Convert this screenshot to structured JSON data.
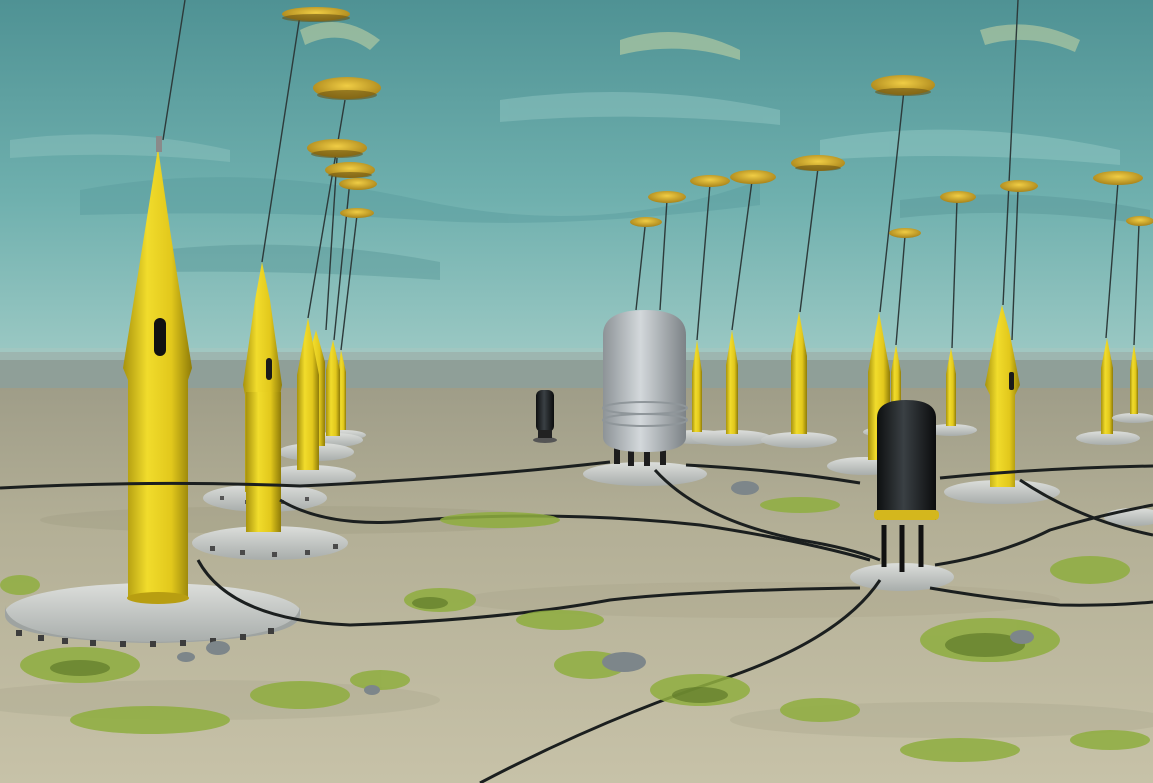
{
  "scene": {
    "palette": {
      "water_top": "#4f9294",
      "water_mid": "#78b7b5",
      "water_horizon": "#9cc9c4",
      "haze": "#8f9f98",
      "seabed_far": "#a9a58d",
      "seabed_near": "#c2bda4",
      "buoy_yellow": "#e7cf1e",
      "buoy_shadow": "#9b8a0a",
      "float_gold": "#d8b12a",
      "float_dark": "#6a5412",
      "concrete": "#cfd2cf",
      "concrete_shadow": "#9ea3a1",
      "tank_grey": "#b8bec2",
      "tank_black": "#1e2224",
      "cable": "#1b1f1f",
      "vegetation": "#8fae3f",
      "vegetation_dark": "#5f7b2a",
      "rock": "#7d868a"
    },
    "objects": {
      "buoy_count": 20,
      "float_count": 19,
      "grey_tank": "pressure-vessel",
      "black_tank": "connector-hub",
      "small_black_post": "junction-post"
    }
  }
}
